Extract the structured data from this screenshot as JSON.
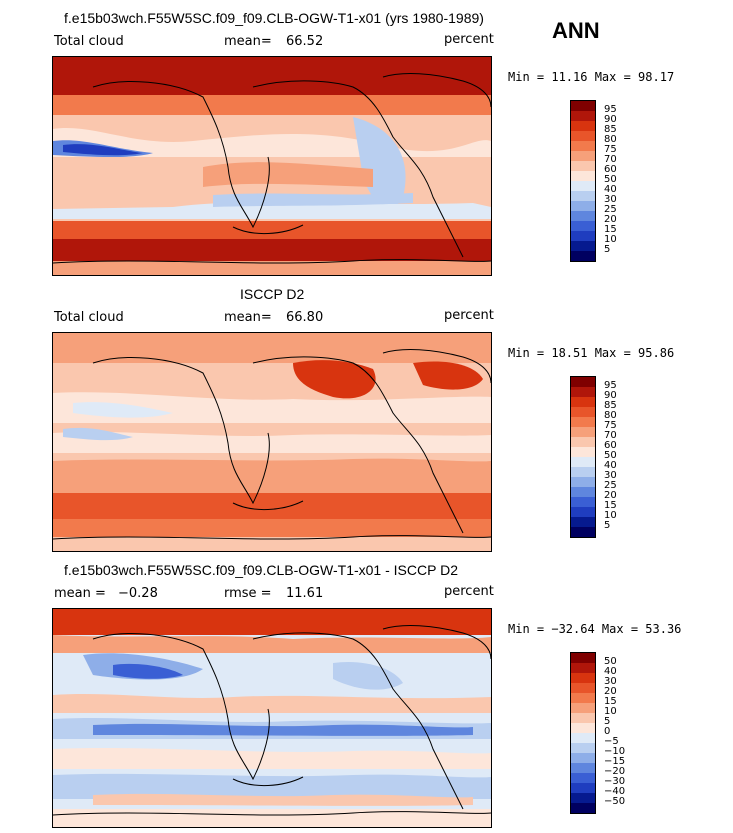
{
  "season": "ANN",
  "panels": [
    {
      "title": "f.e15b03wch.F55W5SC.f09_f09.CLB-OGW-T1-x01 (yrs 1980-1989)",
      "left_label": "Total cloud",
      "stat1_label": "mean=",
      "stat1_value": "66.52",
      "stat2_label": "",
      "stat2_value": "",
      "units": "percent",
      "range_text": "Min =  11.16 Max =  98.17",
      "colorbar": [
        "95",
        "90",
        "85",
        "80",
        "75",
        "70",
        "60",
        "50",
        "40",
        "30",
        "25",
        "20",
        "15",
        "10",
        "5"
      ]
    },
    {
      "title": "ISCCP D2",
      "left_label": "Total cloud",
      "stat1_label": "mean=",
      "stat1_value": "66.80",
      "stat2_label": "",
      "stat2_value": "",
      "units": "percent",
      "range_text": "Min =  18.51 Max =  95.86",
      "colorbar": [
        "95",
        "90",
        "85",
        "80",
        "75",
        "70",
        "60",
        "50",
        "40",
        "30",
        "25",
        "20",
        "15",
        "10",
        "5"
      ]
    },
    {
      "title": "f.e15b03wch.F55W5SC.f09_f09.CLB-OGW-T1-x01 - ISCCP D2",
      "left_label": "",
      "stat1_label": "mean =",
      "stat1_value": "−0.28",
      "stat2_label": "rmse =",
      "stat2_value": "11.61",
      "units": "percent",
      "range_text": "Min = −32.64 Max =  53.36",
      "colorbar": [
        "50",
        "40",
        "30",
        "20",
        "15",
        "10",
        "5",
        "0",
        "−5",
        "−10",
        "−15",
        "−20",
        "−30",
        "−40",
        "−50"
      ]
    }
  ],
  "colors": {
    "abs_scale": [
      "#7f0000",
      "#b0160a",
      "#d8340f",
      "#e8552a",
      "#f27a4c",
      "#f6a07a",
      "#fac7ae",
      "#fde6da",
      "#dfeaf7",
      "#b9cff0",
      "#8eaee8",
      "#5f86de",
      "#3a5fd4",
      "#1f3dbf",
      "#061a8f",
      "#000060"
    ],
    "diff_scale": [
      "#7f0000",
      "#b0160a",
      "#d8340f",
      "#e8552a",
      "#f27a4c",
      "#f6a07a",
      "#fac7ae",
      "#fde6da",
      "#dfeaf7",
      "#b9cff0",
      "#8eaee8",
      "#5f86de",
      "#3a5fd4",
      "#1f3dbf",
      "#061a8f",
      "#000060"
    ]
  }
}
